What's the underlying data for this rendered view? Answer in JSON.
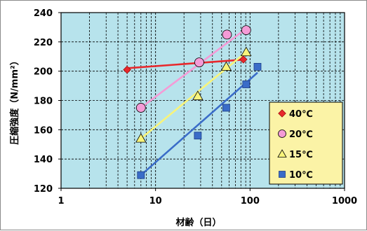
{
  "chart_data": {
    "type": "scatter",
    "x_scale": "log",
    "xlim": [
      1,
      1000
    ],
    "ylim": [
      120,
      240
    ],
    "x_ticks": [
      "1",
      "10",
      "100",
      "1000"
    ],
    "y_ticks": [
      "120",
      "140",
      "160",
      "180",
      "200",
      "220",
      "240"
    ],
    "xlabel": "材齢（日）",
    "ylabel": "圧縮強度（N/mm²）",
    "grid": true,
    "plot_background": "#b7e3ec",
    "legend_background": "#fbf3a6",
    "legend_position": "bottom-right",
    "series": [
      {
        "name": "40℃",
        "color": "#e8282c",
        "marker": "diamond",
        "x": [
          5,
          30,
          85
        ],
        "y": [
          201,
          206,
          208
        ],
        "fit": {
          "x": [
            5,
            90
          ],
          "y": [
            202,
            208
          ]
        }
      },
      {
        "name": "20℃",
        "color": "#f49bd6",
        "marker": "circle",
        "x": [
          7,
          29,
          57,
          91
        ],
        "y": [
          175,
          206,
          225,
          228
        ],
        "fit": {
          "x": [
            7,
            95
          ],
          "y": [
            175,
            230
          ]
        }
      },
      {
        "name": "15℃",
        "color": "#f8f47a",
        "marker": "triangle",
        "x": [
          7,
          28,
          56,
          91
        ],
        "y": [
          154,
          183,
          203,
          213
        ],
        "fit": {
          "x": [
            7,
            95
          ],
          "y": [
            154,
            214
          ]
        }
      },
      {
        "name": "10℃",
        "color": "#3a6cc8",
        "marker": "square",
        "x": [
          7,
          28,
          56,
          91,
          120
        ],
        "y": [
          129,
          156,
          175,
          191,
          203
        ],
        "fit": {
          "x": [
            7,
            120
          ],
          "y": [
            129,
            199
          ]
        }
      }
    ]
  }
}
